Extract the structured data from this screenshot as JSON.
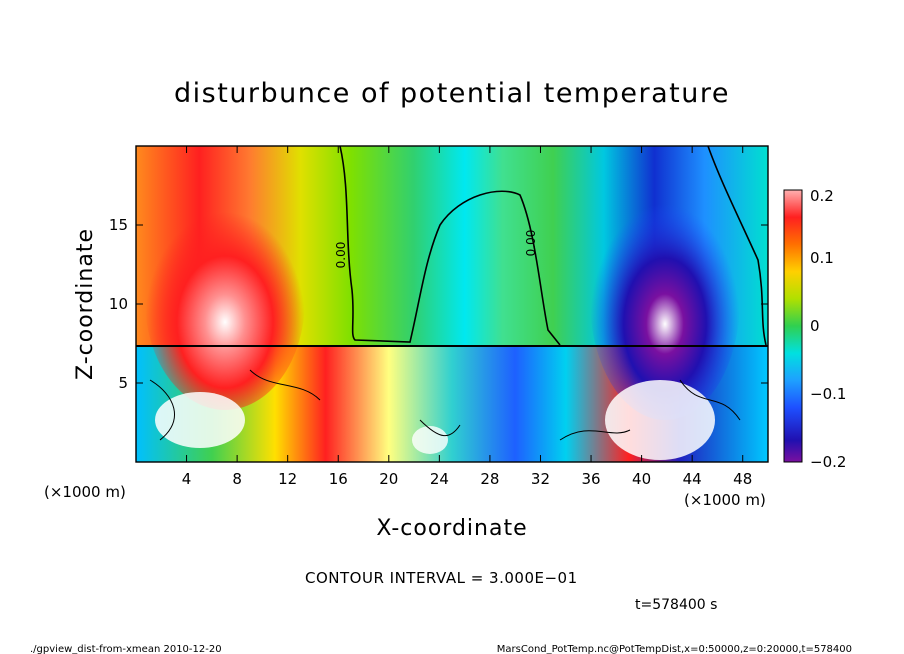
{
  "chart_data": {
    "type": "heatmap",
    "title": "disturbunce of potential temperature",
    "xlabel": "X-coordinate",
    "ylabel": "Z-coordinate",
    "x_unit": "(×1000 m)",
    "x_ticks": [
      "4",
      "8",
      "12",
      "16",
      "20",
      "24",
      "28",
      "32",
      "36",
      "40",
      "44",
      "48"
    ],
    "x_tick_values": [
      4,
      8,
      12,
      16,
      20,
      24,
      28,
      32,
      36,
      40,
      44,
      48
    ],
    "y_ticks": [
      "5",
      "10",
      "15"
    ],
    "y_tick_values": [
      5,
      10,
      15
    ],
    "xlim": [
      0,
      50
    ],
    "ylim": [
      0,
      20
    ],
    "colorbar_ticks": [
      "0.2",
      "0.1",
      "0",
      "−0.1",
      "−0.2"
    ],
    "colorbar_values": [
      0.2,
      0.1,
      0,
      -0.1,
      -0.2
    ],
    "colorbar_range": [
      -0.2,
      0.2
    ],
    "contour_labels": [
      "0.00",
      "0.00"
    ],
    "contour_interval": "CONTOUR INTERVAL = 3.000E−01",
    "time": "t=578400 s"
  },
  "footer": {
    "left": "./gpview_dist-from-xmean  2010-12-20",
    "right": "MarsCond_PotTemp.nc@PotTempDist,x=0:50000,z=0:20000,t=578400"
  }
}
